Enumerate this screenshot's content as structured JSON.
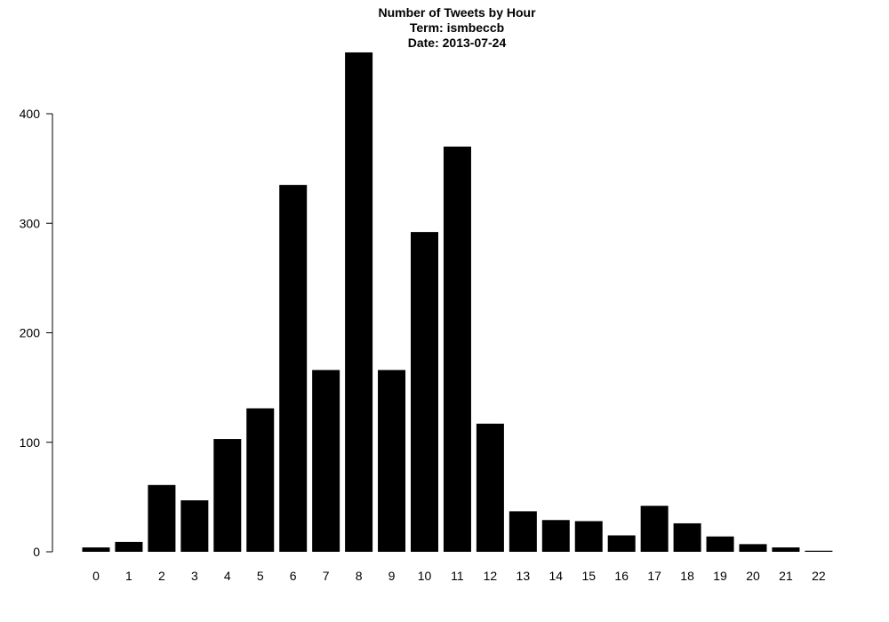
{
  "chart_data": {
    "type": "bar",
    "title_lines": [
      "Number of Tweets by Hour",
      "Term: ismbeccb",
      "Date: 2013-07-24"
    ],
    "xlabel": "",
    "ylabel": "",
    "categories": [
      "0",
      "1",
      "2",
      "3",
      "4",
      "5",
      "6",
      "7",
      "8",
      "9",
      "10",
      "11",
      "12",
      "13",
      "14",
      "15",
      "16",
      "17",
      "18",
      "19",
      "20",
      "21",
      "22"
    ],
    "values": [
      4,
      9,
      61,
      47,
      103,
      131,
      335,
      166,
      456,
      166,
      292,
      370,
      117,
      37,
      29,
      28,
      15,
      42,
      26,
      14,
      7,
      4,
      1
    ],
    "ylim": [
      0,
      456
    ],
    "yticks": [
      0,
      100,
      200,
      300,
      400
    ],
    "ytick_labels": [
      "0",
      "100",
      "200",
      "300",
      "400"
    ],
    "bar_color": "#000000",
    "grid": false,
    "legend": "none"
  }
}
